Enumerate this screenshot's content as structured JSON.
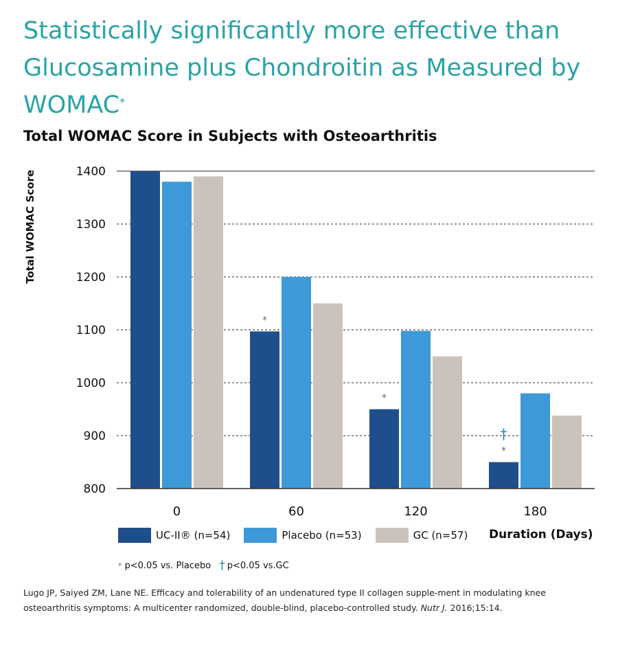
{
  "headline": {
    "text": "Statistically significantly more effective than Glucosamine plus Chondroitin as Measured by WOMAC",
    "marker": "*"
  },
  "chart_data": {
    "type": "bar",
    "title": "Total WOMAC Score in Subjects with Osteoarthritis",
    "xlabel": "Duration (Days)",
    "ylabel": "Total WOMAC Score",
    "categories": [
      "0",
      "60",
      "120",
      "180"
    ],
    "ylim": [
      800,
      1400
    ],
    "yticks": [
      800,
      900,
      1000,
      1100,
      1200,
      1300,
      1400
    ],
    "grid": true,
    "series": [
      {
        "name": "UC-II® (n=54)",
        "color": "#1f4e8c",
        "values": [
          1400,
          1097,
          950,
          850
        ]
      },
      {
        "name": "Placebo (n=53)",
        "color": "#3d99d8",
        "values": [
          1380,
          1200,
          1098,
          980
        ]
      },
      {
        "name": "GC (n=57)",
        "color": "#c9c3bb",
        "values": [
          1390,
          1150,
          1050,
          938
        ]
      }
    ],
    "annotations": [
      {
        "category": "60",
        "series": 0,
        "marks": [
          "*"
        ]
      },
      {
        "category": "120",
        "series": 0,
        "marks": [
          "*"
        ]
      },
      {
        "category": "180",
        "series": 0,
        "marks": [
          "*",
          "†"
        ]
      }
    ],
    "legend_position": "bottom"
  },
  "footnotes": {
    "star_mark": "*",
    "star_text": "p<0.05 vs. Placebo",
    "dagger_mark": "†",
    "dagger_text": "p<0.05 vs.GC"
  },
  "citation": {
    "text": "Lugo JP, Saiyed ZM, Lane NE. Efficacy and tolerability of an undenatured type II collagen supple-ment in modulating knee osteoarthritis symptoms: A multicenter randomized, double-blind, placebo-controlled study.",
    "journal": "Nutr J.",
    "ref": "2016;15:14."
  },
  "colors": {
    "headline": "#2aa3a6",
    "dagger": "#1a8f93",
    "star": "#5a6b7a"
  }
}
